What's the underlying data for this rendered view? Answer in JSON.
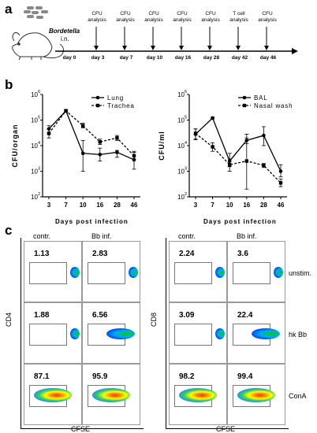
{
  "panel_a": {
    "letter": "a",
    "organism_name": "Bordetella",
    "route": "i.n.",
    "timeline_days": [
      "day 0",
      "day 3",
      "day 7",
      "day 10",
      "day 16",
      "day 28",
      "day 42",
      "day 46"
    ],
    "events": [
      {
        "label": "CFU\nanalysis"
      },
      {
        "label": "CFU\nanalysis"
      },
      {
        "label": "CFU\nanalysis"
      },
      {
        "label": "CFU\nanalysis"
      },
      {
        "label": "CFU\nanalysis"
      },
      {
        "label": "T cell\nanalysis"
      },
      {
        "label": "CFU\nanalysis"
      }
    ]
  },
  "panel_b": {
    "letter": "b",
    "xlabel": "Days post infection"
  },
  "chart_data": [
    {
      "type": "line",
      "ylabel": "CFU/organ",
      "yscale": "log",
      "ylim": [
        100,
        1000000
      ],
      "ytick_labels": [
        "10 2",
        "10 3",
        "10 4",
        "10 5",
        "10 6"
      ],
      "categories": [
        "3",
        "7",
        "10",
        "16",
        "28",
        "46"
      ],
      "legend_position": "top-right",
      "series": [
        {
          "name": "Lung",
          "style": "solid",
          "values": [
            45000,
            230000,
            5000,
            4500,
            5500,
            2800
          ],
          "error": [
            [
              30000,
              60000
            ],
            [
              200000,
              260000
            ],
            [
              1000,
              16000
            ],
            [
              2500,
              8000
            ],
            [
              3500,
              6500
            ],
            [
              1200,
              6000
            ]
          ]
        },
        {
          "name": "Trachea",
          "style": "dashed",
          "values": [
            30000,
            230000,
            60000,
            14000,
            20000,
            4000
          ],
          "error": [
            [
              20000,
              45000
            ],
            [
              200000,
              260000
            ],
            [
              50000,
              75000
            ],
            [
              11000,
              18000
            ],
            [
              16000,
              25000
            ],
            [
              3000,
              5500
            ]
          ]
        }
      ]
    },
    {
      "type": "line",
      "ylabel": "CFU/ml",
      "yscale": "log",
      "ylim": [
        100,
        1000000
      ],
      "ytick_labels": [
        "10 2",
        "10 3",
        "10 4",
        "10 5",
        "10 6"
      ],
      "categories": [
        "3",
        "7",
        "10",
        "16",
        "28",
        "46"
      ],
      "legend_position": "top-right",
      "series": [
        {
          "name": "BAL",
          "style": "solid",
          "values": [
            28000,
            120000,
            2500,
            16000,
            25000,
            1000
          ],
          "error": [
            [
              17000,
              45000
            ],
            [
              110000,
              130000
            ],
            [
              1500,
              5000
            ],
            [
              12000,
              20000
            ],
            [
              10000,
              55000
            ],
            [
              600,
              1800
            ]
          ]
        },
        {
          "name": "Nasal wash",
          "style": "dashed",
          "values": [
            30000,
            9000,
            1800,
            2500,
            1700,
            350
          ],
          "error": [
            [
              18000,
              45000
            ],
            [
              6000,
              13000
            ],
            [
              1000,
              3000
            ],
            [
              200,
              28000
            ],
            [
              1400,
              2000
            ],
            [
              250,
              500
            ]
          ]
        }
      ]
    }
  ],
  "panel_c": {
    "letter": "c",
    "left": {
      "col_labels": [
        "contr.",
        "Bb inf."
      ],
      "y_axis": "CD4",
      "x_axis": "CFSE",
      "values": [
        [
          "1.13",
          "2.83"
        ],
        [
          "1.88",
          "6.56"
        ],
        [
          "87.1",
          "95.9"
        ]
      ]
    },
    "right": {
      "col_labels": [
        "contr.",
        "Bb inf."
      ],
      "y_axis": "CD8",
      "x_axis": "CFSE",
      "values": [
        [
          "2.24",
          "3.6"
        ],
        [
          "3.09",
          "22.4"
        ],
        [
          "98.2",
          "99.4"
        ]
      ]
    },
    "row_labels": [
      "unstim.",
      "hk Bb",
      "ConA"
    ]
  }
}
